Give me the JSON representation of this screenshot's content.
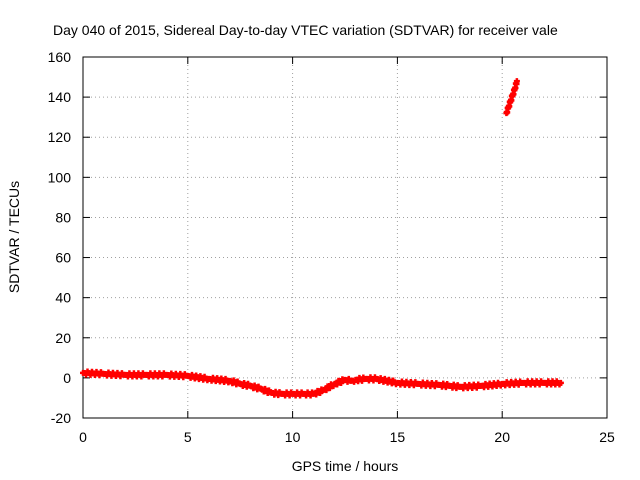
{
  "chart_data": {
    "type": "scatter",
    "title": "Day 040 of 2015, Sidereal Day-to-day VTEC variation (SDTVAR) for receiver vale",
    "xlabel": "GPS time / hours",
    "ylabel": "SDTVAR / TECUs",
    "xlim": [
      0,
      25
    ],
    "ylim": [
      -20,
      160
    ],
    "xticks": [
      0,
      5,
      10,
      15,
      20,
      25
    ],
    "yticks": [
      -20,
      0,
      20,
      40,
      60,
      80,
      100,
      120,
      140,
      160
    ],
    "grid": true,
    "marker_color": "#ff0000",
    "series": [
      {
        "name": "SDTVAR",
        "x": [
          0.0,
          1.0,
          2.0,
          3.0,
          4.0,
          5.0,
          6.0,
          7.0,
          7.5,
          8.0,
          8.5,
          9.0,
          9.5,
          10.0,
          10.5,
          11.0,
          11.5,
          12.0,
          12.5,
          12.8,
          13.0,
          13.5,
          14.0,
          15.0,
          16.0,
          17.0,
          17.5,
          18.0,
          19.0,
          20.0,
          21.0,
          22.0,
          22.8
        ],
        "y": [
          2.5,
          2.0,
          1.5,
          1.5,
          1.5,
          1.0,
          -0.5,
          -1.5,
          -3.0,
          -4.0,
          -5.5,
          -7.5,
          -8.0,
          -8.0,
          -8.0,
          -8.0,
          -6.0,
          -3.0,
          -1.0,
          -1.5,
          -1.0,
          -0.5,
          -0.5,
          -2.5,
          -3.0,
          -3.5,
          -4.0,
          -4.5,
          -4.0,
          -3.0,
          -2.5,
          -2.5,
          -2.5
        ]
      },
      {
        "name": "SDTVAR-jump",
        "x": [
          20.2,
          20.3,
          20.4,
          20.5,
          20.6,
          20.7
        ],
        "y": [
          132,
          135,
          138,
          141,
          144,
          148
        ]
      }
    ]
  }
}
